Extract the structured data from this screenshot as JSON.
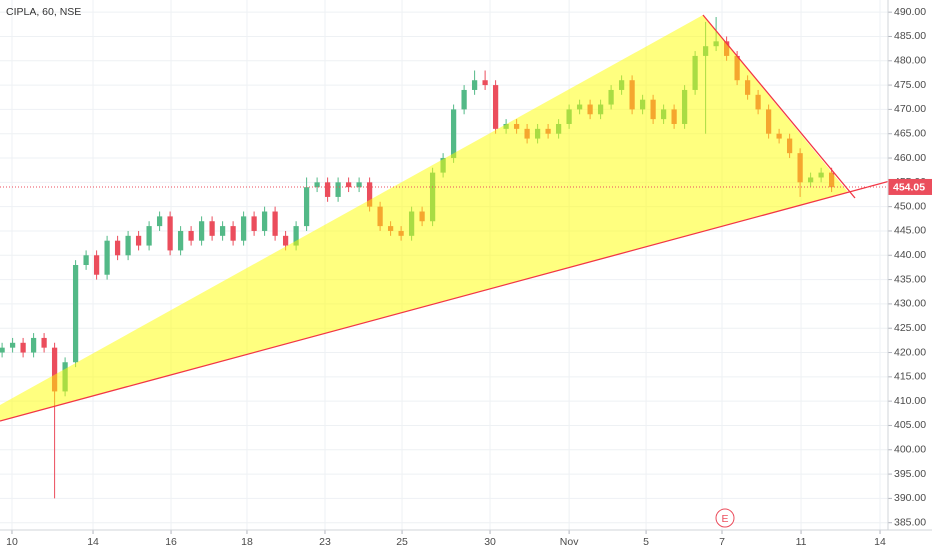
{
  "chart_data": {
    "type": "candlestick",
    "title": "CIPLA, 60, NSE",
    "up_color": "#53b987",
    "down_color": "#eb4d5c",
    "open": [
      420,
      421,
      422,
      420,
      423,
      421,
      412,
      418,
      438,
      440,
      436,
      443,
      440,
      444,
      442,
      446,
      448,
      441,
      445,
      443,
      447,
      444,
      446,
      443,
      448,
      445,
      449,
      444,
      442,
      446,
      454,
      455,
      452,
      455,
      454,
      455,
      450,
      446,
      445,
      444,
      449,
      447,
      457,
      460,
      470,
      474,
      476,
      475,
      466,
      467,
      466,
      464,
      466,
      465,
      467,
      470,
      471,
      469,
      471,
      474,
      476,
      470,
      472,
      468,
      470,
      467,
      474,
      481,
      483,
      484,
      481,
      476,
      473,
      470,
      465,
      464,
      461,
      455,
      456,
      457
    ],
    "high": [
      422,
      423,
      423,
      424,
      424,
      422,
      419,
      439,
      441,
      441,
      444,
      444,
      445,
      445,
      447,
      449,
      449,
      446,
      446,
      448,
      448,
      447,
      447,
      449,
      449,
      450,
      450,
      445,
      447,
      456,
      456,
      456,
      456,
      456,
      456,
      456,
      451,
      447,
      446,
      450,
      450,
      458,
      461,
      471,
      475,
      478,
      478,
      476,
      468,
      468,
      467,
      467,
      467,
      468,
      471,
      472,
      472,
      472,
      475,
      477,
      477,
      473,
      473,
      471,
      471,
      475,
      482,
      488,
      489,
      485,
      482,
      477,
      474,
      471,
      466,
      465,
      462,
      457,
      458,
      458
    ],
    "low": [
      419,
      420,
      419,
      419,
      420,
      390,
      411,
      417,
      437,
      435,
      435,
      439,
      439,
      441,
      441,
      445,
      440,
      440,
      442,
      442,
      443,
      443,
      442,
      442,
      444,
      444,
      443,
      441,
      441,
      445,
      453,
      451,
      451,
      453,
      453,
      449,
      445,
      444,
      443,
      443,
      446,
      446,
      456,
      459,
      469,
      473,
      474,
      465,
      465,
      465,
      463,
      463,
      464,
      464,
      466,
      469,
      468,
      468,
      470,
      473,
      469,
      469,
      467,
      467,
      466,
      466,
      473,
      465,
      482,
      480,
      475,
      472,
      469,
      464,
      463,
      460,
      452,
      454,
      455,
      453
    ],
    "close": [
      421,
      422,
      420,
      423,
      421,
      412,
      418,
      438,
      440,
      436,
      443,
      440,
      444,
      442,
      446,
      448,
      441,
      445,
      443,
      447,
      444,
      446,
      443,
      448,
      445,
      449,
      444,
      442,
      446,
      454,
      455,
      452,
      455,
      454,
      455,
      450,
      446,
      445,
      444,
      449,
      447,
      457,
      460,
      470,
      474,
      476,
      475,
      466,
      467,
      466,
      464,
      466,
      465,
      467,
      470,
      471,
      469,
      471,
      474,
      476,
      470,
      472,
      468,
      470,
      467,
      474,
      481,
      483,
      484,
      481,
      476,
      473,
      470,
      465,
      464,
      461,
      455,
      456,
      457,
      454
    ],
    "xlim": [
      -0.2,
      84.37
    ],
    "xticks": [
      {
        "value": 0.94,
        "label": "10"
      },
      {
        "value": 8.66,
        "label": "14"
      },
      {
        "value": 16.09,
        "label": "16"
      },
      {
        "value": 23.32,
        "label": "18"
      },
      {
        "value": 30.75,
        "label": "23"
      },
      {
        "value": 38.09,
        "label": "25"
      },
      {
        "value": 46.47,
        "label": "30"
      },
      {
        "value": 54.0,
        "label": "Nov"
      },
      {
        "value": 61.33,
        "label": "5"
      },
      {
        "value": 68.56,
        "label": "7"
      },
      {
        "value": 76.09,
        "label": "11"
      },
      {
        "value": 83.61,
        "label": "14"
      }
    ],
    "ylim": [
      383.5,
      492.5
    ],
    "yticks": [
      {
        "value": 385,
        "label": "385.00"
      },
      {
        "value": 390,
        "label": "390.00"
      },
      {
        "value": 395,
        "label": "395.00"
      },
      {
        "value": 400,
        "label": "400.00"
      },
      {
        "value": 405,
        "label": "405.00"
      },
      {
        "value": 410,
        "label": "410.00"
      },
      {
        "value": 415,
        "label": "415.00"
      },
      {
        "value": 420,
        "label": "420.00"
      },
      {
        "value": 425,
        "label": "425.00"
      },
      {
        "value": 430,
        "label": "430.00"
      },
      {
        "value": 435,
        "label": "435.00"
      },
      {
        "value": 440,
        "label": "440.00"
      },
      {
        "value": 445,
        "label": "445.00"
      },
      {
        "value": 450,
        "label": "450.00"
      },
      {
        "value": 455,
        "label": "455.00"
      },
      {
        "value": 460,
        "label": "460.00"
      },
      {
        "value": 465,
        "label": "465.00"
      },
      {
        "value": 470,
        "label": "470.00"
      },
      {
        "value": 475,
        "label": "475.00"
      },
      {
        "value": 480,
        "label": "480.00"
      },
      {
        "value": 485,
        "label": "485.00"
      },
      {
        "value": 490,
        "label": "490.00"
      }
    ],
    "grid": true,
    "last_price": 454.05,
    "event_marker": "E"
  }
}
